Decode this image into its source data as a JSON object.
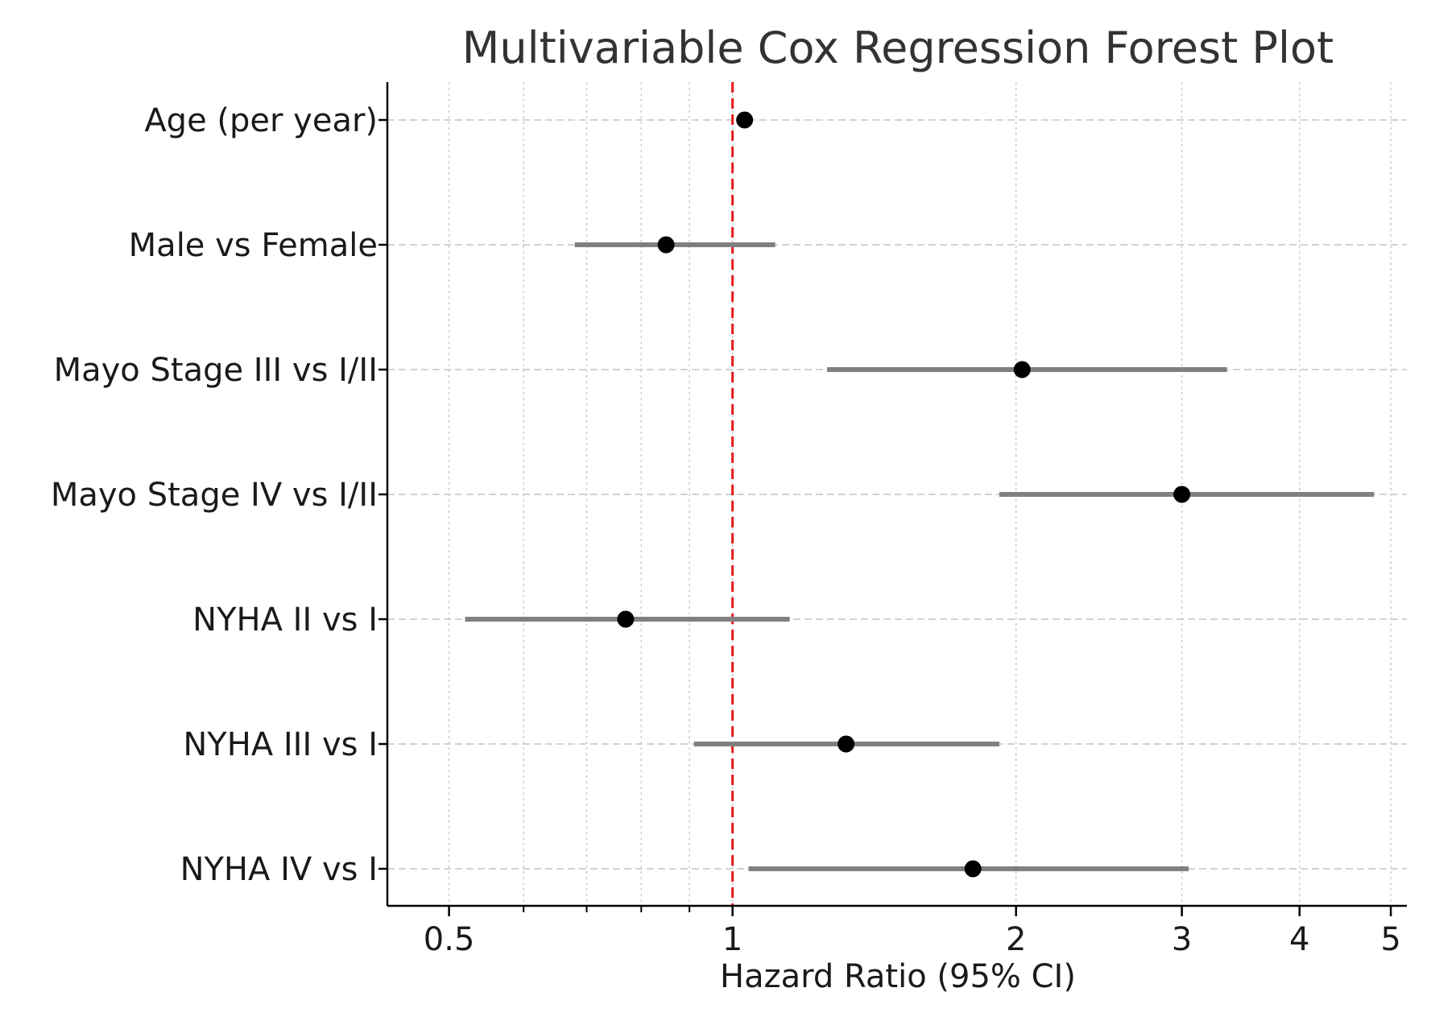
{
  "chart_data": {
    "type": "forest",
    "title": "Multivariable Cox Regression Forest Plot",
    "xlabel": "Hazard Ratio (95% CI)",
    "ylabel": "",
    "xscale": "log",
    "xlim": [
      0.43,
      5.2
    ],
    "xticks": [
      {
        "value": 0.5,
        "label": "0.5"
      },
      {
        "value": 1,
        "label": "1"
      },
      {
        "value": 2,
        "label": "2"
      },
      {
        "value": 3,
        "label": "3"
      },
      {
        "value": 4,
        "label": "4"
      },
      {
        "value": 5,
        "label": "5"
      }
    ],
    "minor_xticks": [
      0.6,
      0.7,
      0.8,
      0.9
    ],
    "reference_line": {
      "value": 1,
      "color": "#e31a1c",
      "style": "dashed"
    },
    "grid": true,
    "colors": {
      "point": "#000000",
      "ci": "#808080",
      "reference": "#e31a1c",
      "grid": "#cccccc",
      "axis": "#000000"
    },
    "rows": [
      {
        "label": "Age (per year)",
        "hr": 1.03,
        "lower": 1.03,
        "upper": 1.03
      },
      {
        "label": "Male vs Female",
        "hr": 0.85,
        "lower": 0.68,
        "upper": 1.11
      },
      {
        "label": "Mayo Stage III vs I/II",
        "hr": 2.03,
        "lower": 1.26,
        "upper": 3.35
      },
      {
        "label": "Mayo Stage IV vs I/II",
        "hr": 3.0,
        "lower": 1.92,
        "upper": 4.8
      },
      {
        "label": "NYHA II vs I",
        "hr": 0.77,
        "lower": 0.52,
        "upper": 1.15
      },
      {
        "label": "NYHA III vs I",
        "hr": 1.32,
        "lower": 0.91,
        "upper": 1.92
      },
      {
        "label": "NYHA IV vs I",
        "hr": 1.8,
        "lower": 1.04,
        "upper": 3.05
      }
    ]
  }
}
